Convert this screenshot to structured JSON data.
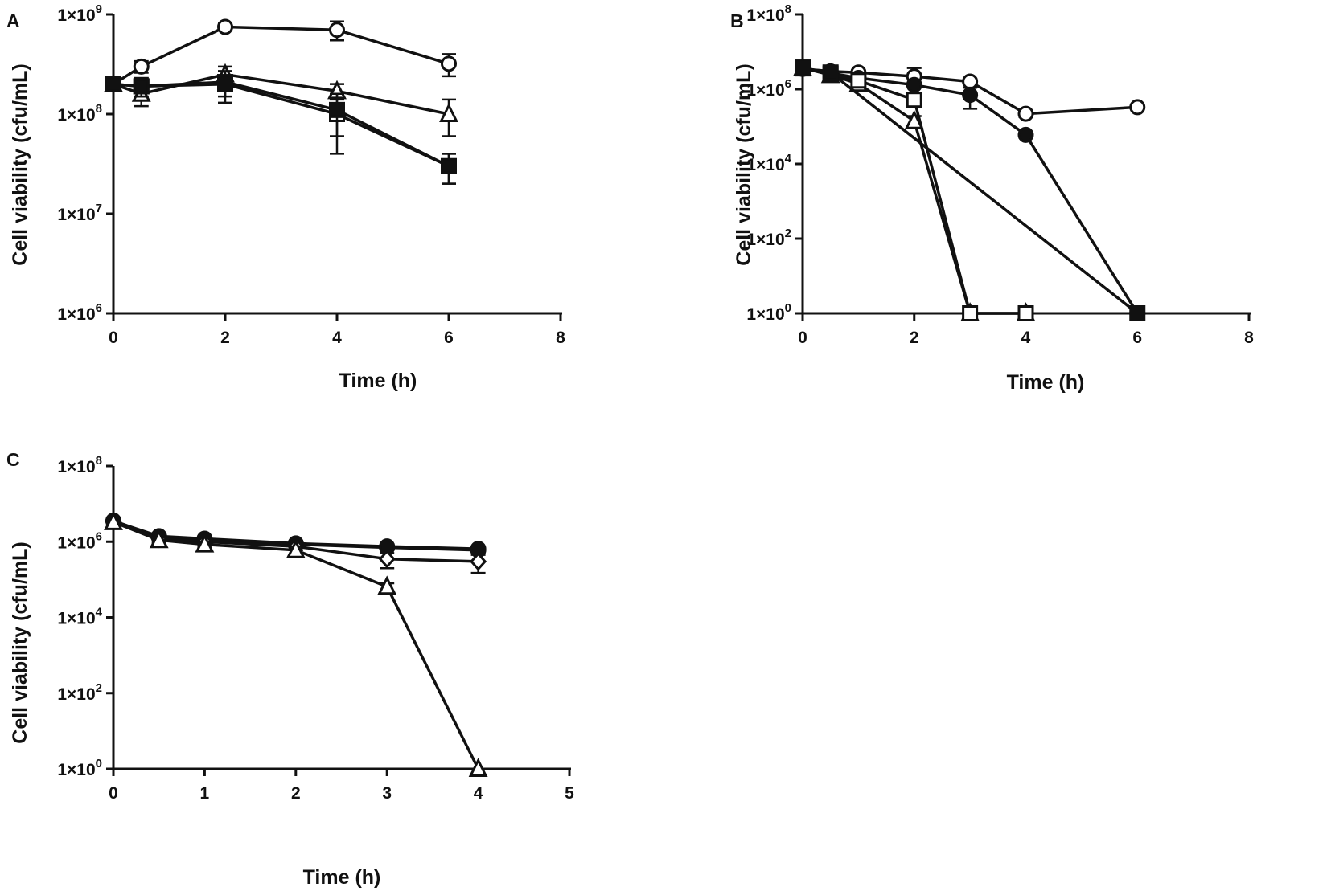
{
  "chart_data": [
    {
      "panel": "A",
      "type": "line",
      "scale_y": "log",
      "xlabel": "Time (h)",
      "ylabel": "Cell viability (cfu/mL)",
      "xlim": [
        0,
        8
      ],
      "ylim": [
        1000000,
        1000000000
      ],
      "x_ticks": [
        "0",
        "2",
        "4",
        "6",
        "8"
      ],
      "y_ticks": [
        {
          "mant": "1×10",
          "exp": "6"
        },
        {
          "mant": "1×10",
          "exp": "7"
        },
        {
          "mant": "1×10",
          "exp": "8"
        },
        {
          "mant": "1×10",
          "exp": "9"
        }
      ],
      "series": [
        {
          "marker": "circle-open",
          "x": [
            0,
            0.5,
            2,
            4,
            6
          ],
          "y": [
            200000000,
            300000000,
            750000000,
            700000000,
            320000000
          ],
          "err": [
            30000000,
            40000000,
            60000000,
            150000000,
            80000000
          ]
        },
        {
          "marker": "triangle-open",
          "x": [
            0,
            0.5,
            2,
            4,
            6
          ],
          "y": [
            200000000,
            160000000,
            250000000,
            170000000,
            100000000
          ],
          "err": [
            30000000,
            40000000,
            50000000,
            30000000,
            40000000
          ]
        },
        {
          "marker": "square-open",
          "x": [
            0,
            0.5,
            2,
            4,
            6
          ],
          "y": [
            200000000,
            190000000,
            200000000,
            100000000,
            30000000
          ],
          "err": [
            30000000,
            40000000,
            70000000,
            60000000,
            10000000
          ]
        },
        {
          "marker": "square-filled",
          "x": [
            0,
            0.5,
            2,
            4,
            6
          ],
          "y": [
            200000000,
            190000000,
            210000000,
            110000000,
            30000000
          ],
          "err": [
            30000000,
            40000000,
            60000000,
            50000000,
            10000000
          ]
        }
      ]
    },
    {
      "panel": "B",
      "type": "line",
      "scale_y": "log",
      "xlabel": "Time  (h)",
      "ylabel": "Cell viability (cfu/mL)",
      "xlim": [
        0,
        8
      ],
      "ylim": [
        1,
        100000000
      ],
      "x_ticks": [
        "0",
        "2",
        "4",
        "6",
        "8"
      ],
      "y_ticks": [
        {
          "mant": "1×10",
          "exp": "0"
        },
        {
          "mant": "1×10",
          "exp": "2"
        },
        {
          "mant": "1×10",
          "exp": "4"
        },
        {
          "mant": "1×10",
          "exp": "6"
        },
        {
          "mant": "1×10",
          "exp": "8"
        }
      ],
      "series": [
        {
          "marker": "circle-open",
          "x": [
            0,
            0.5,
            1,
            2,
            3,
            4,
            6
          ],
          "y": [
            3500000,
            3000000,
            2800000,
            2200000,
            1600000,
            220000,
            330000
          ],
          "err": [
            500000,
            400000,
            500000,
            1500000,
            300000,
            40000,
            40000
          ]
        },
        {
          "marker": "circle-filled",
          "x": [
            0,
            0.5,
            1,
            2,
            3,
            4,
            6
          ],
          "y": [
            3600000,
            2700000,
            2000000,
            1300000,
            700000,
            60000,
            1
          ],
          "err": [
            500000,
            400000,
            500000,
            500000,
            400000,
            10000,
            0
          ]
        },
        {
          "marker": "triangle-open",
          "x": [
            0,
            0.5,
            1,
            2,
            3,
            4
          ],
          "y": [
            3700000,
            2400000,
            1400000,
            140000,
            1,
            1
          ],
          "err": [
            500000,
            400000,
            300000,
            50000,
            0,
            0
          ]
        },
        {
          "marker": "square-open",
          "x": [
            0,
            0.5,
            1,
            2,
            3,
            4
          ],
          "y": [
            3800000,
            2600000,
            1700000,
            520000,
            1,
            1
          ],
          "err": [
            500000,
            400000,
            300000,
            150000,
            0,
            0
          ]
        },
        {
          "marker": "square-filled",
          "x": [
            0,
            0.5,
            6
          ],
          "y": [
            3600000,
            2800000,
            1
          ],
          "err": [
            500000,
            400000,
            0
          ]
        }
      ]
    },
    {
      "panel": "C",
      "type": "line",
      "scale_y": "log",
      "xlabel": "Time (h)",
      "ylabel": "Cell viability (cfu/mL)",
      "xlim": [
        0,
        5
      ],
      "ylim": [
        1,
        100000000
      ],
      "x_ticks": [
        "0",
        "1",
        "2",
        "3",
        "4",
        "5"
      ],
      "y_ticks": [
        {
          "mant": "1×10",
          "exp": "0"
        },
        {
          "mant": "1×10",
          "exp": "2"
        },
        {
          "mant": "1×10",
          "exp": "4"
        },
        {
          "mant": "1×10",
          "exp": "6"
        },
        {
          "mant": "1×10",
          "exp": "8"
        }
      ],
      "series": [
        {
          "marker": "circle-open",
          "x": [
            0,
            0.5,
            1,
            2,
            3,
            4
          ],
          "y": [
            3500000,
            1400000,
            1200000,
            900000,
            750000,
            650000
          ],
          "err": [
            400000,
            200000,
            200000,
            150000,
            100000,
            100000
          ]
        },
        {
          "marker": "circle-filled",
          "x": [
            0,
            0.5,
            1,
            2,
            3,
            4
          ],
          "y": [
            3600000,
            1300000,
            1100000,
            850000,
            700000,
            600000
          ],
          "err": [
            400000,
            200000,
            200000,
            150000,
            100000,
            100000
          ]
        },
        {
          "marker": "diamond-open",
          "x": [
            0,
            0.5,
            1,
            2,
            3,
            4
          ],
          "y": [
            3400000,
            1200000,
            1000000,
            750000,
            350000,
            300000
          ],
          "err": [
            400000,
            200000,
            200000,
            150000,
            150000,
            150000
          ]
        },
        {
          "marker": "triangle-open",
          "x": [
            0,
            0.5,
            1,
            2,
            3,
            4
          ],
          "y": [
            3300000,
            1100000,
            850000,
            600000,
            65000,
            1
          ],
          "err": [
            400000,
            200000,
            150000,
            150000,
            15000,
            0
          ]
        }
      ]
    }
  ]
}
